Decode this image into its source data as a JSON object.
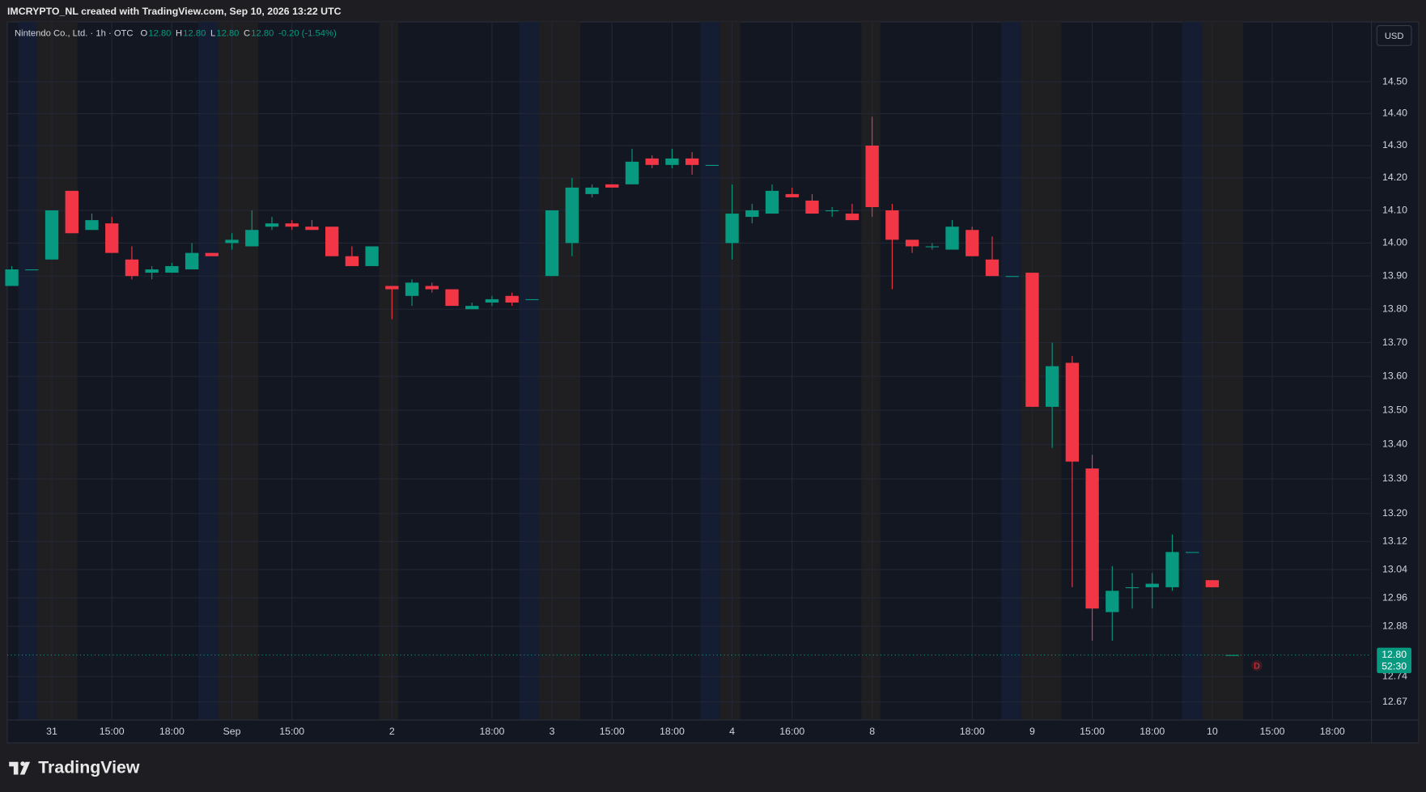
{
  "header": "IMCRYPTO_NL created with TradingView.com, Sep 10, 2026 13:22 UTC",
  "legend": {
    "symbol": "Nintendo Co., Ltd. · 1h · OTC",
    "items": [
      {
        "key": "O",
        "value": "12.80"
      },
      {
        "key": "H",
        "value": "12.80"
      },
      {
        "key": "L",
        "value": "12.80"
      },
      {
        "key": "C",
        "value": "12.80"
      }
    ],
    "change": "-0.20 (-1.54%)"
  },
  "currency_button": "USD",
  "marker_label": "D",
  "footer_logo": "TradingView",
  "chart_data": {
    "type": "candlestick",
    "log_scale": true,
    "grid": true,
    "up_color": "#089981",
    "down_color": "#f23645",
    "categories": [
      null,
      null,
      "31",
      null,
      null,
      "15:00",
      null,
      null,
      "18:00",
      null,
      null,
      "Sep",
      null,
      null,
      "15:00",
      null,
      null,
      null,
      null,
      "2",
      null,
      null,
      null,
      null,
      "18:00",
      null,
      null,
      "3",
      null,
      null,
      "15:00",
      null,
      null,
      "18:00",
      null,
      null,
      "4",
      null,
      null,
      "16:00",
      null,
      null,
      null,
      "8",
      null,
      null,
      null,
      null,
      "18:00",
      null,
      null,
      "9",
      null,
      null,
      "15:00",
      null,
      null,
      "18:00",
      null,
      null,
      "10",
      null,
      null,
      "15:00",
      null,
      null,
      "18:00",
      null
    ],
    "open": [
      13.87,
      13.92,
      13.95,
      14.16,
      14.04,
      14.06,
      13.95,
      13.91,
      13.91,
      13.92,
      13.97,
      14.0,
      13.99,
      14.05,
      14.06,
      14.05,
      14.05,
      13.96,
      13.93,
      13.87,
      13.84,
      13.87,
      13.86,
      13.8,
      13.82,
      13.84,
      13.83,
      13.9,
      14.0,
      14.15,
      14.18,
      14.18,
      14.26,
      14.24,
      14.26,
      14.24,
      14.0,
      14.08,
      14.09,
      14.15,
      14.13,
      14.1,
      14.09,
      14.3,
      14.1,
      14.01,
      13.99,
      13.98,
      14.04,
      13.95,
      13.9,
      13.91,
      13.51,
      13.64,
      13.33,
      12.92,
      12.99,
      12.99,
      12.99,
      13.09,
      13.01,
      12.8,
      null,
      null,
      null,
      null,
      null,
      null
    ],
    "high": [
      13.93,
      13.92,
      14.1,
      14.16,
      14.09,
      14.08,
      13.99,
      13.93,
      13.94,
      14.0,
      13.97,
      14.03,
      14.1,
      14.08,
      14.07,
      14.07,
      14.05,
      13.99,
      13.99,
      13.87,
      13.89,
      13.88,
      13.86,
      13.82,
      13.84,
      13.85,
      13.83,
      14.1,
      14.2,
      14.18,
      14.18,
      14.29,
      14.27,
      14.29,
      14.28,
      14.24,
      14.18,
      14.12,
      14.18,
      14.17,
      14.15,
      14.11,
      14.12,
      14.39,
      14.12,
      14.01,
      14.0,
      14.07,
      14.05,
      14.02,
      13.9,
      13.91,
      13.7,
      13.66,
      13.37,
      13.05,
      13.03,
      13.03,
      13.14,
      13.09,
      13.01,
      12.8,
      null,
      null,
      null,
      null,
      null,
      null
    ],
    "low": [
      13.87,
      13.92,
      13.95,
      14.03,
      14.04,
      13.97,
      13.89,
      13.89,
      13.91,
      13.92,
      13.96,
      13.98,
      13.99,
      14.04,
      14.04,
      14.04,
      13.96,
      13.93,
      13.93,
      13.77,
      13.81,
      13.85,
      13.81,
      13.8,
      13.81,
      13.81,
      13.83,
      13.9,
      13.96,
      14.14,
      14.17,
      14.18,
      14.23,
      14.23,
      14.21,
      14.24,
      13.95,
      14.06,
      14.09,
      14.14,
      14.09,
      14.08,
      14.07,
      14.08,
      13.86,
      13.97,
      13.98,
      13.98,
      13.96,
      13.9,
      13.9,
      13.51,
      13.39,
      12.99,
      12.84,
      12.84,
      12.93,
      12.93,
      12.98,
      13.09,
      12.99,
      12.8,
      null,
      null,
      null,
      null,
      null,
      null
    ],
    "close": [
      13.92,
      13.92,
      14.1,
      14.03,
      14.07,
      13.97,
      13.9,
      13.92,
      13.93,
      13.97,
      13.96,
      14.01,
      14.04,
      14.06,
      14.05,
      14.04,
      13.96,
      13.93,
      13.99,
      13.86,
      13.88,
      13.86,
      13.81,
      13.81,
      13.83,
      13.82,
      13.83,
      14.1,
      14.17,
      14.17,
      14.17,
      14.25,
      14.24,
      14.26,
      14.24,
      14.24,
      14.09,
      14.1,
      14.16,
      14.14,
      14.09,
      14.1,
      14.07,
      14.11,
      14.01,
      13.99,
      13.99,
      14.05,
      13.96,
      13.9,
      13.9,
      13.51,
      13.63,
      13.35,
      12.93,
      12.98,
      12.99,
      13.0,
      13.09,
      13.09,
      12.99,
      12.8,
      null,
      null,
      null,
      null,
      null,
      null
    ],
    "ylim": [
      12.62,
      14.69
    ],
    "yticks": [
      {
        "value": 12.67,
        "label": "12.67"
      },
      {
        "value": 12.74,
        "label": "12.74"
      },
      {
        "value": 12.88,
        "label": "12.88"
      },
      {
        "value": 12.96,
        "label": "12.96"
      },
      {
        "value": 13.04,
        "label": "13.04"
      },
      {
        "value": 13.12,
        "label": "13.12"
      },
      {
        "value": 13.2,
        "label": "13.20"
      },
      {
        "value": 13.3,
        "label": "13.30"
      },
      {
        "value": 13.4,
        "label": "13.40"
      },
      {
        "value": 13.5,
        "label": "13.50"
      },
      {
        "value": 13.6,
        "label": "13.60"
      },
      {
        "value": 13.7,
        "label": "13.70"
      },
      {
        "value": 13.8,
        "label": "13.80"
      },
      {
        "value": 13.9,
        "label": "13.90"
      },
      {
        "value": 14,
        "label": "14.00"
      },
      {
        "value": 14.1,
        "label": "14.10"
      },
      {
        "value": 14.2,
        "label": "14.20"
      },
      {
        "value": 14.3,
        "label": "14.30"
      },
      {
        "value": 14.4,
        "label": "14.40"
      },
      {
        "value": 14.5,
        "label": "14.50"
      }
    ],
    "last_price": {
      "value": 12.8,
      "label": "12.80"
    },
    "countdown": "52:30"
  }
}
